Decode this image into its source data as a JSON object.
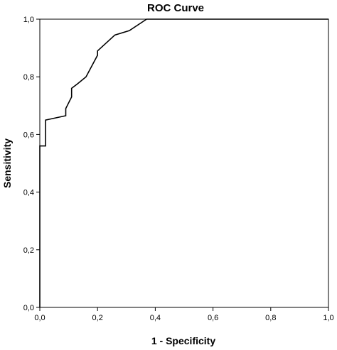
{
  "chart_data": {
    "type": "line",
    "title": "ROC Curve",
    "xlabel": "1 - Specificity",
    "ylabel": "Sensitivity",
    "xlim": [
      0,
      1
    ],
    "ylim": [
      0,
      1
    ],
    "x_ticks": [
      "0,0",
      "0,2",
      "0,4",
      "0,6",
      "0,8",
      "1,0"
    ],
    "y_ticks": [
      "0,0",
      "0,2",
      "0,4",
      "0,6",
      "0,8",
      "1,0"
    ],
    "grid": false,
    "legend": "none",
    "series": [
      {
        "color": "#000000",
        "x": [
          0.0,
          0.0,
          0.0,
          0.0,
          0.02,
          0.02,
          0.09,
          0.09,
          0.11,
          0.11,
          0.13,
          0.16,
          0.2,
          0.2,
          0.26,
          0.31,
          0.37,
          1.0
        ],
        "y": [
          0.0,
          0.08,
          0.48,
          0.56,
          0.56,
          0.65,
          0.665,
          0.69,
          0.73,
          0.76,
          0.775,
          0.8,
          0.875,
          0.89,
          0.945,
          0.96,
          1.0,
          1.0
        ]
      }
    ]
  }
}
